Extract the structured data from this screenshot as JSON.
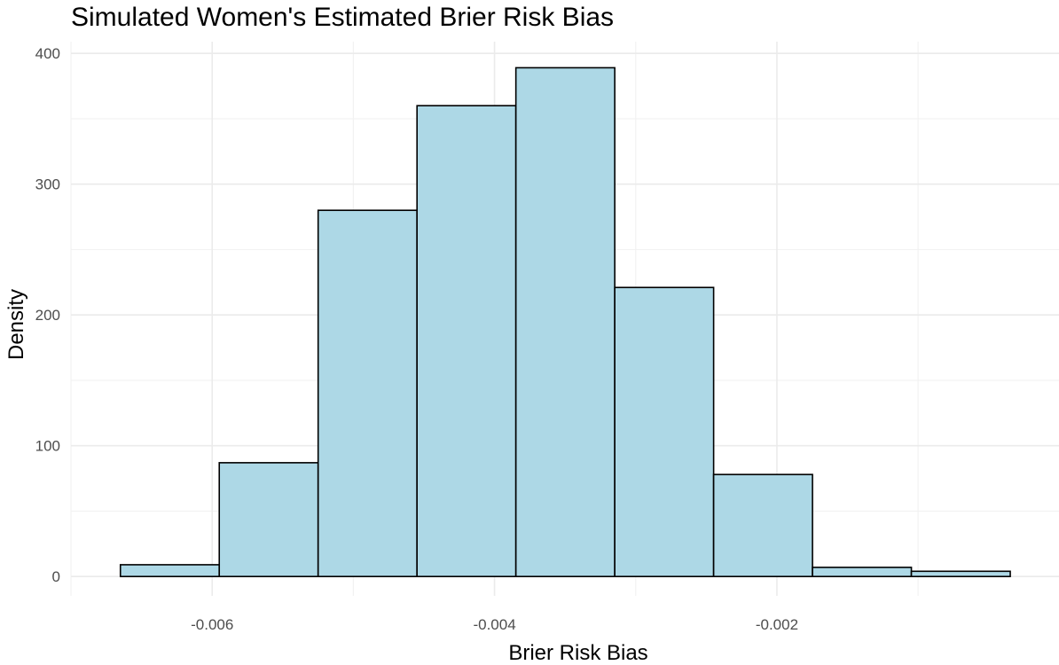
{
  "chart_data": {
    "type": "bar",
    "title": "Simulated Women's Estimated Brier Risk Bias",
    "xlabel": "Brier Risk Bias",
    "ylabel": "Density",
    "bins": [
      {
        "start": -0.00665,
        "end": -0.0059497,
        "value": 9
      },
      {
        "start": -0.0059497,
        "end": -0.0052494,
        "value": 87
      },
      {
        "start": -0.0052494,
        "end": -0.0045491,
        "value": 280
      },
      {
        "start": -0.0045491,
        "end": -0.0038488,
        "value": 360
      },
      {
        "start": -0.0038488,
        "end": -0.0031485,
        "value": 389
      },
      {
        "start": -0.0031485,
        "end": -0.0024482,
        "value": 221
      },
      {
        "start": -0.0024482,
        "end": -0.0017479,
        "value": 78
      },
      {
        "start": -0.0017479,
        "end": -0.0010476,
        "value": 7
      },
      {
        "start": -0.0010476,
        "end": -0.0003473,
        "value": 4
      }
    ],
    "x_ticks": [
      -0.006,
      -0.004,
      -0.002
    ],
    "x_tick_labels": [
      "-0.006",
      "-0.004",
      "-0.002"
    ],
    "x_minor_ticks": [
      -0.007,
      -0.005,
      -0.003,
      -0.001
    ],
    "y_ticks": [
      0,
      100,
      200,
      300,
      400
    ],
    "y_tick_labels": [
      "0",
      "100",
      "200",
      "300",
      "400"
    ],
    "y_minor_ticks": [
      50,
      150,
      250,
      350
    ],
    "xlim": [
      -0.0070002,
      -2.02e-06
    ],
    "ylim": [
      -14.78,
      408.94
    ],
    "grid": true,
    "legend": "none",
    "bar_fill": "#add8e6",
    "bar_outline": "#000000"
  }
}
